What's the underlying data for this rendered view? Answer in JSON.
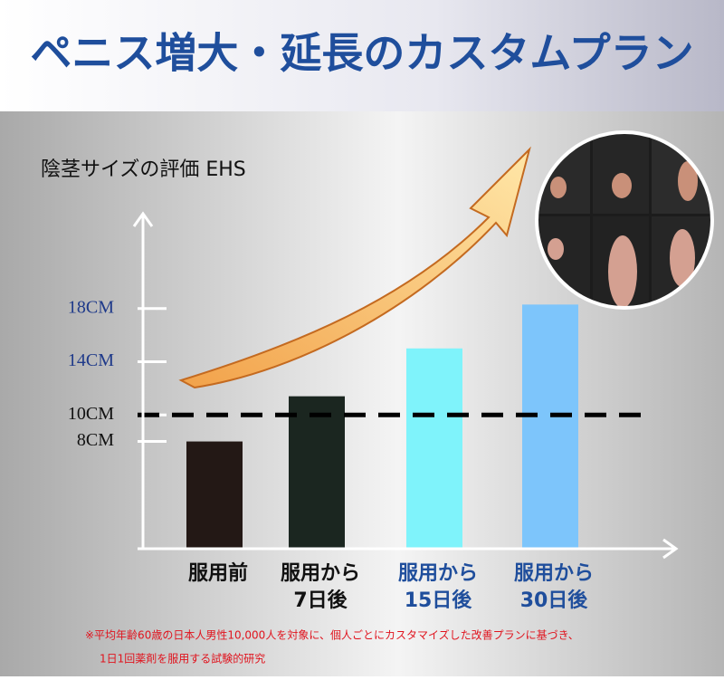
{
  "chart_data": {
    "type": "bar",
    "title": "ペニス増大・延長のカスタムプラン",
    "y_axis_title": "陰茎サイズの評価 EHS",
    "categories": [
      [
        "服用前"
      ],
      [
        "服用から",
        "7日後"
      ],
      [
        "服用から",
        "15日後"
      ],
      [
        "服用から",
        "30日後"
      ]
    ],
    "category_colors": [
      "#111111",
      "#111111",
      "#1f4e9c",
      "#1f4e9c"
    ],
    "values": [
      8,
      11.4,
      15,
      18.3
    ],
    "colors": [
      "#231815",
      "#1b2620",
      "#7ff3fb",
      "#7dc5fb"
    ],
    "ylim": [
      0,
      25
    ],
    "yticks": [
      {
        "value": 8,
        "label": "8CM"
      },
      {
        "value": 10,
        "label": "10CM"
      },
      {
        "value": 14,
        "label": "14CM"
      },
      {
        "value": 18,
        "label": "18CM"
      }
    ],
    "ytick_colors": [
      "#111111",
      "#111111",
      "#1f3a8a",
      "#1f3a8a"
    ],
    "reference_line": 10,
    "footnote": [
      "※平均年齢60歳の日本人男性10,000人を対象に、個人ごとにカスタマイズした改善プランに基づき、",
      "1日1回薬剤を服用する試験的研究"
    ]
  }
}
